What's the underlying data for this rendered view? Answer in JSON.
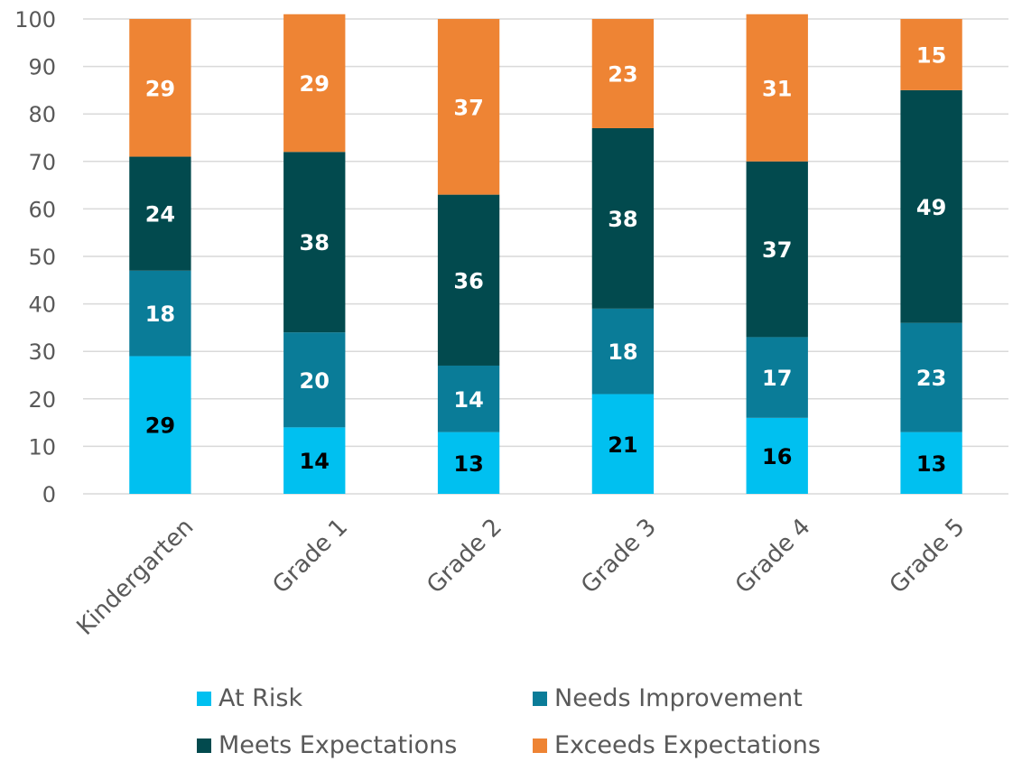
{
  "chart_data": {
    "type": "bar",
    "stacked": true,
    "categories": [
      "Kindergarten",
      "Grade 1",
      "Grade 2",
      "Grade 3",
      "Grade 4",
      "Grade 5"
    ],
    "series": [
      {
        "name": "At Risk",
        "color": "#00c0f0",
        "label_color": "#000000",
        "values": [
          29,
          14,
          13,
          21,
          16,
          13
        ]
      },
      {
        "name": "Needs Improvement",
        "color": "#0a7c98",
        "label_color": "#ffffff",
        "values": [
          18,
          20,
          14,
          18,
          17,
          23
        ]
      },
      {
        "name": "Meets Expectations",
        "color": "#024a4e",
        "label_color": "#ffffff",
        "values": [
          24,
          38,
          36,
          38,
          37,
          49
        ]
      },
      {
        "name": "Exceeds Expectations",
        "color": "#ee8434",
        "label_color": "#ffffff",
        "values": [
          29,
          29,
          37,
          23,
          31,
          15
        ]
      }
    ],
    "ylim": [
      0,
      100
    ],
    "yticks": [
      0,
      10,
      20,
      30,
      40,
      50,
      60,
      70,
      80,
      90,
      100
    ],
    "grid": true,
    "legend": "bottom",
    "title": "",
    "xlabel": "",
    "ylabel": ""
  }
}
